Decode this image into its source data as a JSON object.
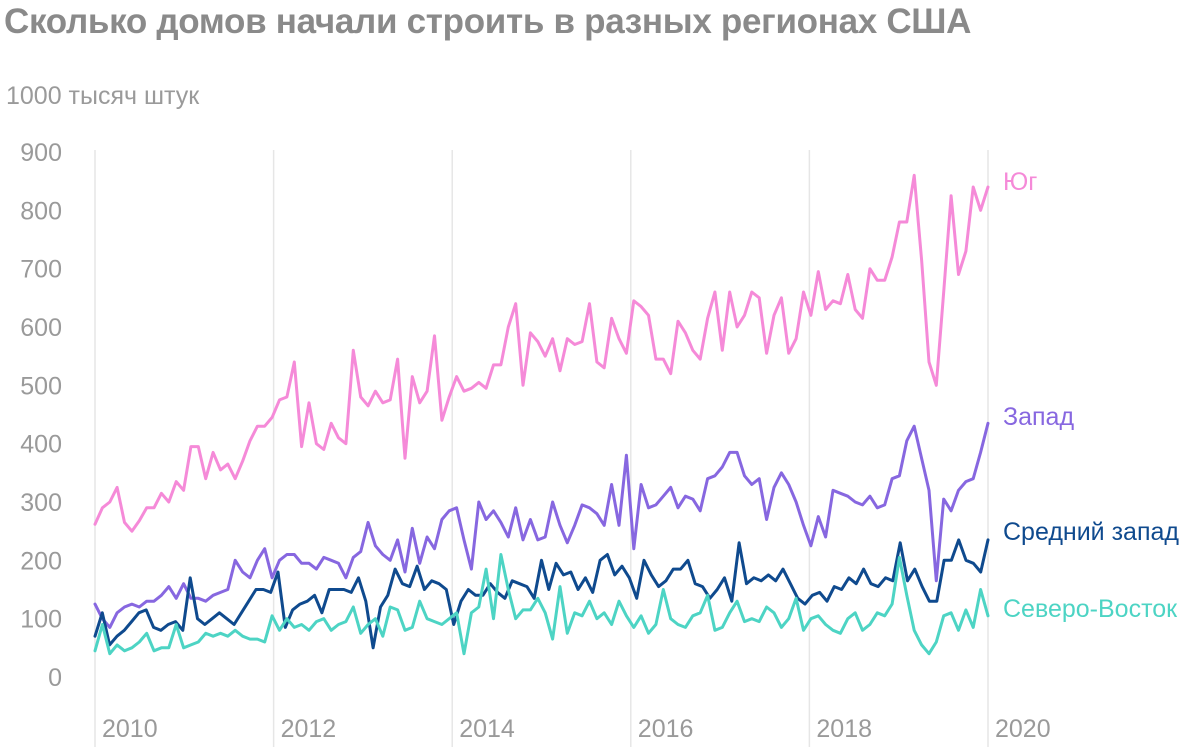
{
  "chart_data": {
    "type": "line",
    "title": "Сколько домов начали строить в разных регионах США",
    "ylabel": "1000 тысяч штук",
    "ylim": [
      0,
      900
    ],
    "xlim": [
      2010,
      2020
    ],
    "yticks": [
      0,
      100,
      200,
      300,
      400,
      500,
      600,
      700,
      800,
      900
    ],
    "xticks": [
      2010,
      2012,
      2014,
      2016,
      2018,
      2020
    ],
    "grid": "vertical",
    "legend": "inline-right",
    "series": [
      {
        "name": "Юг",
        "color": "#f58ad8",
        "x_start": 2010,
        "x_end": 2020,
        "values": [
          262,
          290,
          300,
          325,
          265,
          250,
          268,
          290,
          290,
          315,
          300,
          335,
          320,
          395,
          395,
          340,
          385,
          355,
          365,
          340,
          370,
          405,
          430,
          430,
          445,
          475,
          480,
          540,
          395,
          470,
          400,
          390,
          435,
          410,
          400,
          560,
          480,
          465,
          490,
          470,
          475,
          545,
          375,
          515,
          470,
          490,
          585,
          440,
          480,
          515,
          490,
          495,
          505,
          495,
          535,
          535,
          600,
          640,
          500,
          590,
          575,
          550,
          580,
          525,
          580,
          570,
          575,
          640,
          540,
          530,
          615,
          580,
          555,
          645,
          635,
          620,
          545,
          545,
          520,
          610,
          590,
          560,
          545,
          615,
          660,
          560,
          660,
          600,
          620,
          660,
          650,
          555,
          620,
          650,
          555,
          580,
          660,
          620,
          695,
          630,
          645,
          640,
          690,
          630,
          615,
          700,
          680,
          680,
          720,
          780,
          780,
          860,
          715,
          540,
          500,
          660,
          825,
          690,
          730,
          840,
          800,
          840
        ]
      },
      {
        "name": "Запад",
        "color": "#8767e0",
        "x_start": 2010,
        "x_end": 2020,
        "values": [
          125,
          100,
          85,
          110,
          120,
          125,
          120,
          130,
          130,
          140,
          155,
          135,
          160,
          135,
          135,
          130,
          140,
          145,
          150,
          200,
          180,
          170,
          200,
          220,
          170,
          200,
          210,
          210,
          195,
          195,
          185,
          205,
          200,
          195,
          170,
          205,
          215,
          265,
          225,
          210,
          200,
          235,
          180,
          255,
          195,
          240,
          220,
          270,
          285,
          290,
          235,
          185,
          300,
          270,
          285,
          265,
          240,
          290,
          235,
          270,
          235,
          240,
          300,
          260,
          230,
          260,
          295,
          290,
          280,
          260,
          330,
          260,
          380,
          220,
          330,
          290,
          295,
          310,
          325,
          290,
          310,
          305,
          285,
          340,
          345,
          360,
          385,
          385,
          345,
          330,
          340,
          270,
          325,
          350,
          330,
          300,
          260,
          225,
          275,
          240,
          320,
          315,
          310,
          300,
          295,
          310,
          290,
          295,
          340,
          345,
          405,
          430,
          375,
          320,
          165,
          305,
          285,
          320,
          335,
          340,
          385,
          435
        ]
      },
      {
        "name": "Средний запад",
        "color": "#0f4a8e",
        "x_start": 2010,
        "x_end": 2020,
        "values": [
          70,
          110,
          55,
          70,
          80,
          95,
          110,
          115,
          85,
          80,
          90,
          95,
          80,
          170,
          100,
          90,
          100,
          110,
          100,
          90,
          110,
          130,
          150,
          150,
          145,
          180,
          85,
          115,
          125,
          130,
          140,
          110,
          150,
          150,
          150,
          145,
          170,
          130,
          50,
          120,
          140,
          185,
          160,
          155,
          190,
          150,
          165,
          160,
          150,
          90,
          130,
          150,
          140,
          140,
          160,
          145,
          135,
          165,
          160,
          155,
          135,
          200,
          150,
          195,
          175,
          180,
          150,
          170,
          145,
          200,
          210,
          175,
          190,
          170,
          135,
          200,
          175,
          155,
          165,
          185,
          185,
          200,
          160,
          155,
          135,
          150,
          170,
          130,
          230,
          160,
          170,
          165,
          175,
          165,
          185,
          160,
          135,
          125,
          140,
          145,
          130,
          155,
          150,
          170,
          160,
          185,
          160,
          155,
          170,
          165,
          230,
          165,
          185,
          155,
          130,
          130,
          200,
          200,
          235,
          200,
          195,
          180,
          235
        ]
      },
      {
        "name": "Северо-Восток",
        "color": "#4dd4c4",
        "x_start": 2010,
        "x_end": 2020,
        "values": [
          45,
          90,
          40,
          55,
          45,
          50,
          60,
          75,
          45,
          50,
          50,
          90,
          50,
          55,
          60,
          75,
          70,
          75,
          70,
          80,
          70,
          65,
          65,
          60,
          105,
          80,
          100,
          85,
          90,
          80,
          95,
          100,
          80,
          90,
          95,
          120,
          75,
          90,
          100,
          70,
          120,
          115,
          80,
          85,
          130,
          100,
          95,
          90,
          100,
          110,
          40,
          110,
          120,
          185,
          100,
          210,
          150,
          100,
          115,
          115,
          135,
          110,
          65,
          155,
          75,
          110,
          105,
          130,
          100,
          110,
          90,
          130,
          105,
          85,
          105,
          75,
          90,
          150,
          100,
          90,
          85,
          105,
          110,
          140,
          80,
          85,
          110,
          130,
          95,
          100,
          95,
          120,
          110,
          85,
          100,
          135,
          80,
          100,
          105,
          90,
          80,
          75,
          100,
          110,
          80,
          90,
          110,
          105,
          125,
          205,
          140,
          80,
          55,
          40,
          60,
          105,
          110,
          80,
          115,
          85,
          150,
          105
        ]
      }
    ]
  }
}
